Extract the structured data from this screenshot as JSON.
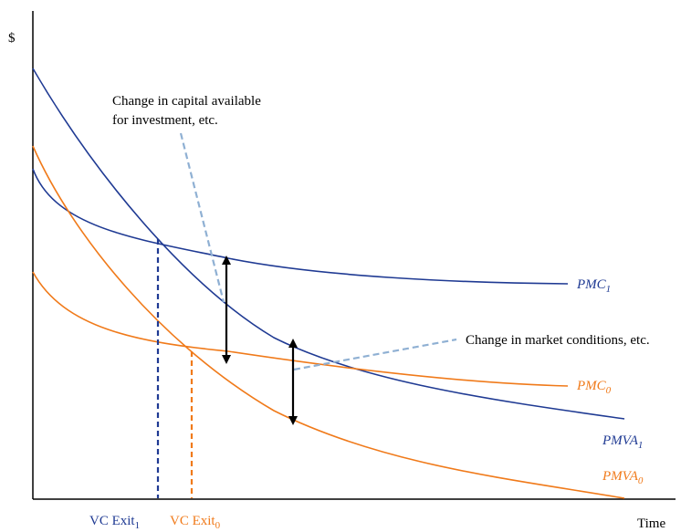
{
  "axes": {
    "y_label": "$",
    "x_label": "Time"
  },
  "colors": {
    "navy": "#1f3a93",
    "orange": "#f07a1a",
    "dashed_light": "#8fb0d3",
    "black": "#000000"
  },
  "curves": {
    "pmc1": {
      "name": "PMC",
      "sub": "1"
    },
    "pmc0": {
      "name": "PMC",
      "sub": "0"
    },
    "pmva1": {
      "name": "PMVA",
      "sub": "1"
    },
    "pmva0": {
      "name": "PMVA",
      "sub": "0"
    }
  },
  "exits": {
    "exit1": {
      "name": "VC Exit",
      "sub": "1"
    },
    "exit0": {
      "name": "VC Exit",
      "sub": "0"
    }
  },
  "annotations": {
    "capital_line1": "Change in capital available",
    "capital_line2": "for investment, etc.",
    "market": "Change in market conditions, etc."
  }
}
